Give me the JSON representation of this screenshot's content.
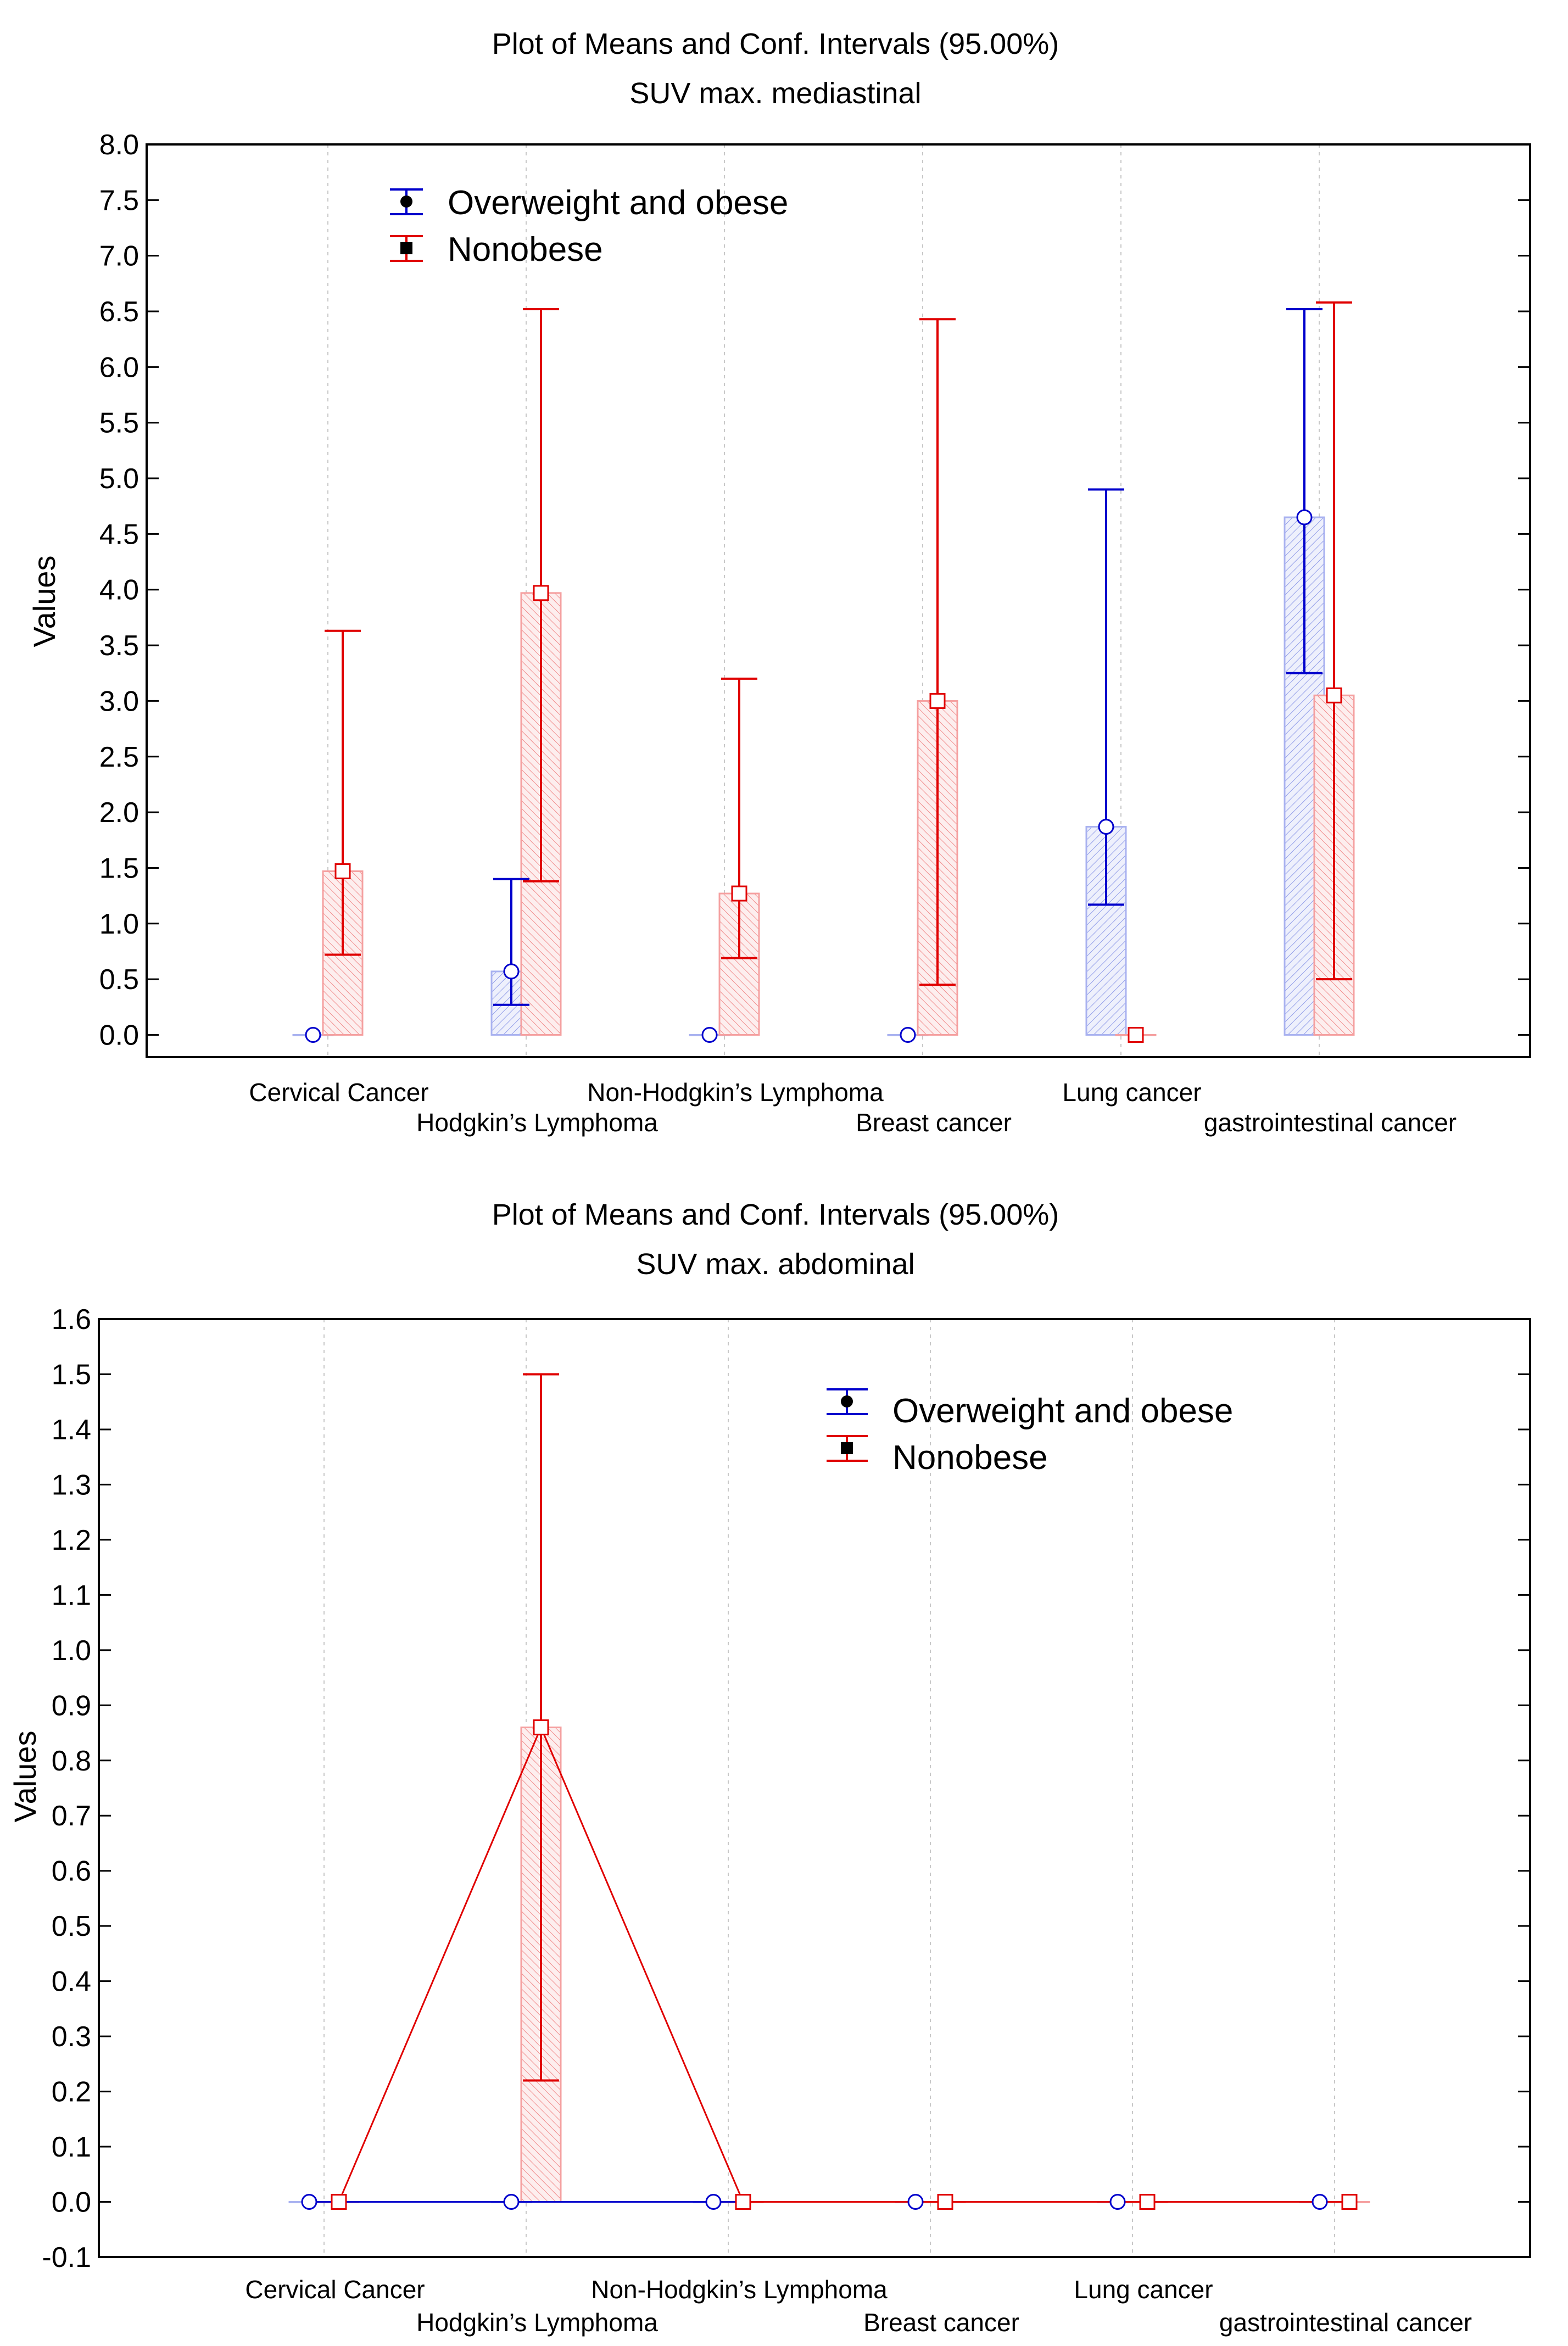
{
  "chart_data": [
    {
      "type": "bar",
      "title": "Plot of Means and Conf. Intervals (95.00%)",
      "subtitle": "SUV max. mediastinal",
      "xlabel": "",
      "ylabel": "Values",
      "ylim": [
        -0.2,
        8.0
      ],
      "yticks": [
        0.0,
        0.5,
        1.0,
        1.5,
        2.0,
        2.5,
        3.0,
        3.5,
        4.0,
        4.5,
        5.0,
        5.5,
        6.0,
        6.5,
        7.0,
        7.5,
        8.0
      ],
      "tick_decimals": 1,
      "grid": true,
      "legend_position": "top-left",
      "connect_series": false,
      "categories": [
        "Cervical Cancer",
        "Hodgkin’s Lymphoma",
        "Non-Hodgkin’s Lymphoma",
        "Breast cancer",
        "Lung cancer",
        "gastrointestinal cancer"
      ],
      "series": [
        {
          "name": "Overweight and obese",
          "color": "#0000cc",
          "bar_color": "#a9b2f0",
          "marker": "circle",
          "values": [
            0.0,
            0.57,
            0.0,
            0.0,
            1.87,
            4.65
          ],
          "ci_low": [
            null,
            0.27,
            null,
            null,
            1.17,
            3.25
          ],
          "ci_high": [
            null,
            1.4,
            null,
            null,
            4.9,
            6.52
          ]
        },
        {
          "name": "Nonobese",
          "color": "#e00000",
          "bar_color": "#f5a0a0",
          "marker": "square",
          "values": [
            1.47,
            3.97,
            1.27,
            3.0,
            0.0,
            3.05
          ],
          "ci_low": [
            0.72,
            1.38,
            0.69,
            0.45,
            null,
            0.5
          ],
          "ci_high": [
            3.63,
            6.52,
            3.2,
            6.43,
            null,
            6.58
          ]
        }
      ]
    },
    {
      "type": "bar",
      "title": "Plot of Means and Conf. Intervals (95.00%)",
      "subtitle": "SUV max. abdominal",
      "xlabel": "",
      "ylabel": "Values",
      "ylim": [
        -0.1,
        1.6
      ],
      "yticks": [
        -0.1,
        0.0,
        0.1,
        0.2,
        0.3,
        0.4,
        0.5,
        0.6,
        0.7,
        0.8,
        0.9,
        1.0,
        1.1,
        1.2,
        1.3,
        1.4,
        1.5,
        1.6
      ],
      "tick_decimals": 1,
      "grid": true,
      "legend_position": "top-center",
      "connect_series": true,
      "categories": [
        "Cervical Cancer",
        "Hodgkin’s Lymphoma",
        "Non-Hodgkin’s Lymphoma",
        "Breast cancer",
        "Lung cancer",
        "gastrointestinal cancer"
      ],
      "series": [
        {
          "name": "Overweight and obese",
          "color": "#0000cc",
          "bar_color": "#a9b2f0",
          "marker": "circle",
          "values": [
            0.0,
            0.0,
            0.0,
            0.0,
            0.0,
            0.0
          ],
          "ci_low": [
            null,
            null,
            null,
            null,
            null,
            null
          ],
          "ci_high": [
            null,
            null,
            null,
            null,
            null,
            null
          ]
        },
        {
          "name": "Nonobese",
          "color": "#e00000",
          "bar_color": "#f5a0a0",
          "marker": "square",
          "values": [
            0.0,
            0.86,
            0.0,
            0.0,
            0.0,
            0.0
          ],
          "ci_low": [
            null,
            0.22,
            null,
            null,
            null,
            null
          ],
          "ci_high": [
            null,
            1.5,
            null,
            null,
            null,
            null
          ]
        }
      ]
    }
  ]
}
